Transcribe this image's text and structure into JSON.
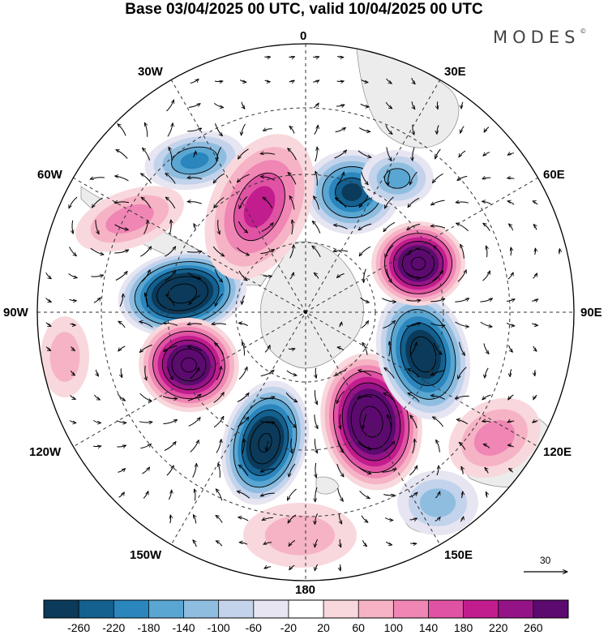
{
  "title": "Base 03/04/2025 00 UTC, valid 10/04/2025 00 UTC",
  "brand": {
    "name": "MODES",
    "mark": "©"
  },
  "longitude_labels": {
    "top": "0",
    "bottom": "180",
    "left": "90W",
    "right": "90E",
    "upper_left_30": "30W",
    "upper_right_30": "30E",
    "upper_left_60": "60W",
    "upper_right_60": "60E",
    "lower_left_120": "120W",
    "lower_right_120": "120E",
    "lower_left_150": "150W",
    "lower_right_150": "150E"
  },
  "reference_vector": {
    "value": "30"
  },
  "colorbar": {
    "ticks": [
      "-260",
      "-220",
      "-180",
      "-140",
      "-100",
      "-60",
      "-20",
      "20",
      "60",
      "100",
      "140",
      "180",
      "220",
      "260"
    ],
    "colors": [
      "#0b3a5a",
      "#14608f",
      "#2a86bd",
      "#5aa6d2",
      "#8fbde0",
      "#c2d3eb",
      "#e6e5f1",
      "#ffffff",
      "#f8d8dc",
      "#f6b3c5",
      "#ef86b4",
      "#e052a3",
      "#c11d8e",
      "#941386",
      "#5c0a6f"
    ]
  },
  "anomalies": [
    {
      "sign": "neg",
      "level": 11,
      "name": "cyclone-west-atlantic"
    },
    {
      "sign": "pos",
      "level": 10,
      "name": "anticyclone-east-pacific"
    },
    {
      "sign": "neg",
      "level": 10,
      "name": "cyclone-pacific"
    },
    {
      "sign": "pos",
      "level": 11,
      "name": "anticyclone-south-pacific"
    },
    {
      "sign": "neg",
      "level": 9,
      "name": "cyclone-indian"
    },
    {
      "sign": "pos",
      "level": 10,
      "name": "anticyclone-indian"
    },
    {
      "sign": "neg",
      "level": 7,
      "name": "cyclone-south-atlantic"
    },
    {
      "sign": "neg",
      "level": 5,
      "name": "cyclone-far-atlantic"
    },
    {
      "sign": "pos",
      "level": 5,
      "name": "ridge-atlantic"
    },
    {
      "sign": "pos",
      "level": 3,
      "name": "ridge-far-atlantic"
    },
    {
      "sign": "neg",
      "level": 4,
      "name": "trough-east"
    },
    {
      "sign": "pos",
      "level": 3,
      "name": "ridge-australia"
    },
    {
      "sign": "neg",
      "level": 3,
      "name": "trough-tasman"
    },
    {
      "sign": "pos",
      "level": 2,
      "name": "ridge-south-pacific"
    },
    {
      "sign": "pos",
      "level": 2,
      "name": "ridge-west"
    }
  ]
}
